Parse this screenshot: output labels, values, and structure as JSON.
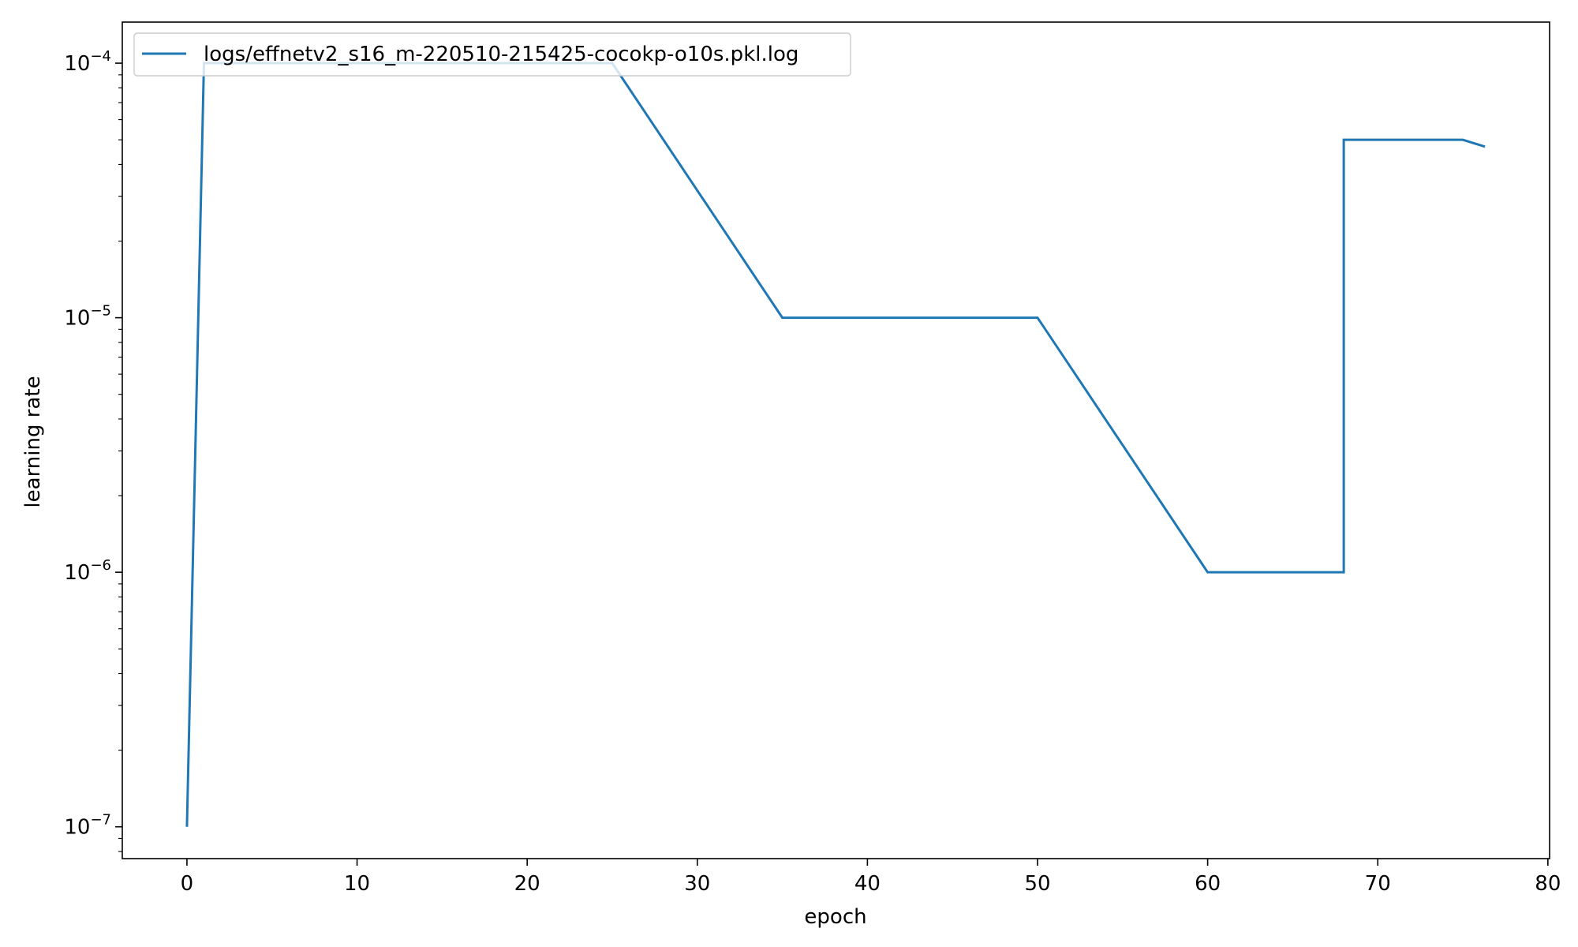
{
  "chart_data": {
    "type": "line",
    "title": "",
    "xlabel": "epoch",
    "ylabel": "learning rate",
    "xlim": [
      -3.8,
      80.1
    ],
    "ylim": [
      7.5e-08,
      0.000145
    ],
    "yscale": "log",
    "grid": false,
    "legend_position": "upper-left",
    "xticks": [
      0,
      10,
      20,
      30,
      40,
      50,
      60,
      70,
      80
    ],
    "xtick_labels": [
      "0",
      "10",
      "20",
      "30",
      "40",
      "50",
      "60",
      "70",
      "80"
    ],
    "yticks": [
      1e-07,
      1e-06,
      1e-05,
      0.0001
    ],
    "ytick_labels": [
      {
        "base": "10",
        "exp": "−7"
      },
      {
        "base": "10",
        "exp": "−6"
      },
      {
        "base": "10",
        "exp": "−5"
      },
      {
        "base": "10",
        "exp": "−4"
      }
    ],
    "series": [
      {
        "name": "logs/effnetv2_s16_m-220510-215425-cocokp-o10s.pkl.log",
        "color": "#1f77b4",
        "x": [
          0,
          1,
          25,
          35,
          50,
          60,
          68,
          68,
          75,
          76.3
        ],
        "y": [
          1e-07,
          0.0001,
          0.0001,
          1e-05,
          1e-05,
          1e-06,
          1e-06,
          5e-05,
          5e-05,
          4.7e-05
        ]
      }
    ]
  }
}
